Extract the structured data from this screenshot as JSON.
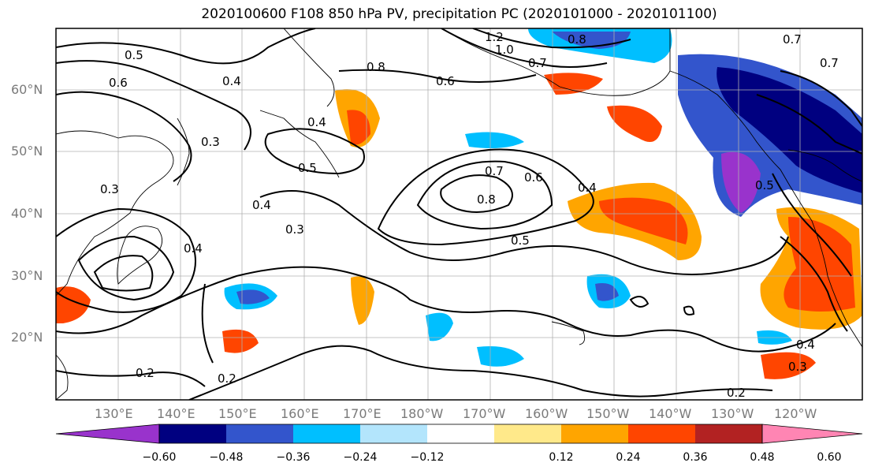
{
  "title": "2020100600 F108 850 hPa PV, precipitation PC (2020101000 - 2020101100)",
  "lat_labels": [
    "60°N",
    "50°N",
    "40°N",
    "30°N",
    "20°N"
  ],
  "lon_labels": [
    "130°E",
    "140°E",
    "150°E",
    "160°E",
    "170°E",
    "180°W",
    "170°W",
    "160°W",
    "150°W",
    "140°W",
    "130°W",
    "120°W"
  ],
  "contour_labels": [
    "1.2",
    "1.0",
    "0.8",
    "0.7",
    "0.5",
    "0.6",
    "0.8",
    "0.6",
    "0.7",
    "0.4",
    "0.4",
    "0.5",
    "0.4",
    "0.3",
    "0.7",
    "0.6",
    "0.8",
    "0.4",
    "0.3",
    "0.5",
    "0.4",
    "0.3",
    "0.2",
    "0.2",
    "0.4",
    "0.3",
    "0.2",
    "0.5",
    "0.7"
  ],
  "colorbar": {
    "colors": [
      "#9933cc",
      "#000080",
      "#3355cc",
      "#00bfff",
      "#b3e5fc",
      "#ffffff",
      "#ffe98a",
      "#ffa500",
      "#ff4500",
      "#b22222",
      "#ff85b3"
    ],
    "tick_labels": [
      "−0.60",
      "−0.48",
      "−0.36",
      "−0.24",
      "−0.12",
      "0.12",
      "0.24",
      "0.36",
      "0.48",
      "0.60"
    ]
  }
}
